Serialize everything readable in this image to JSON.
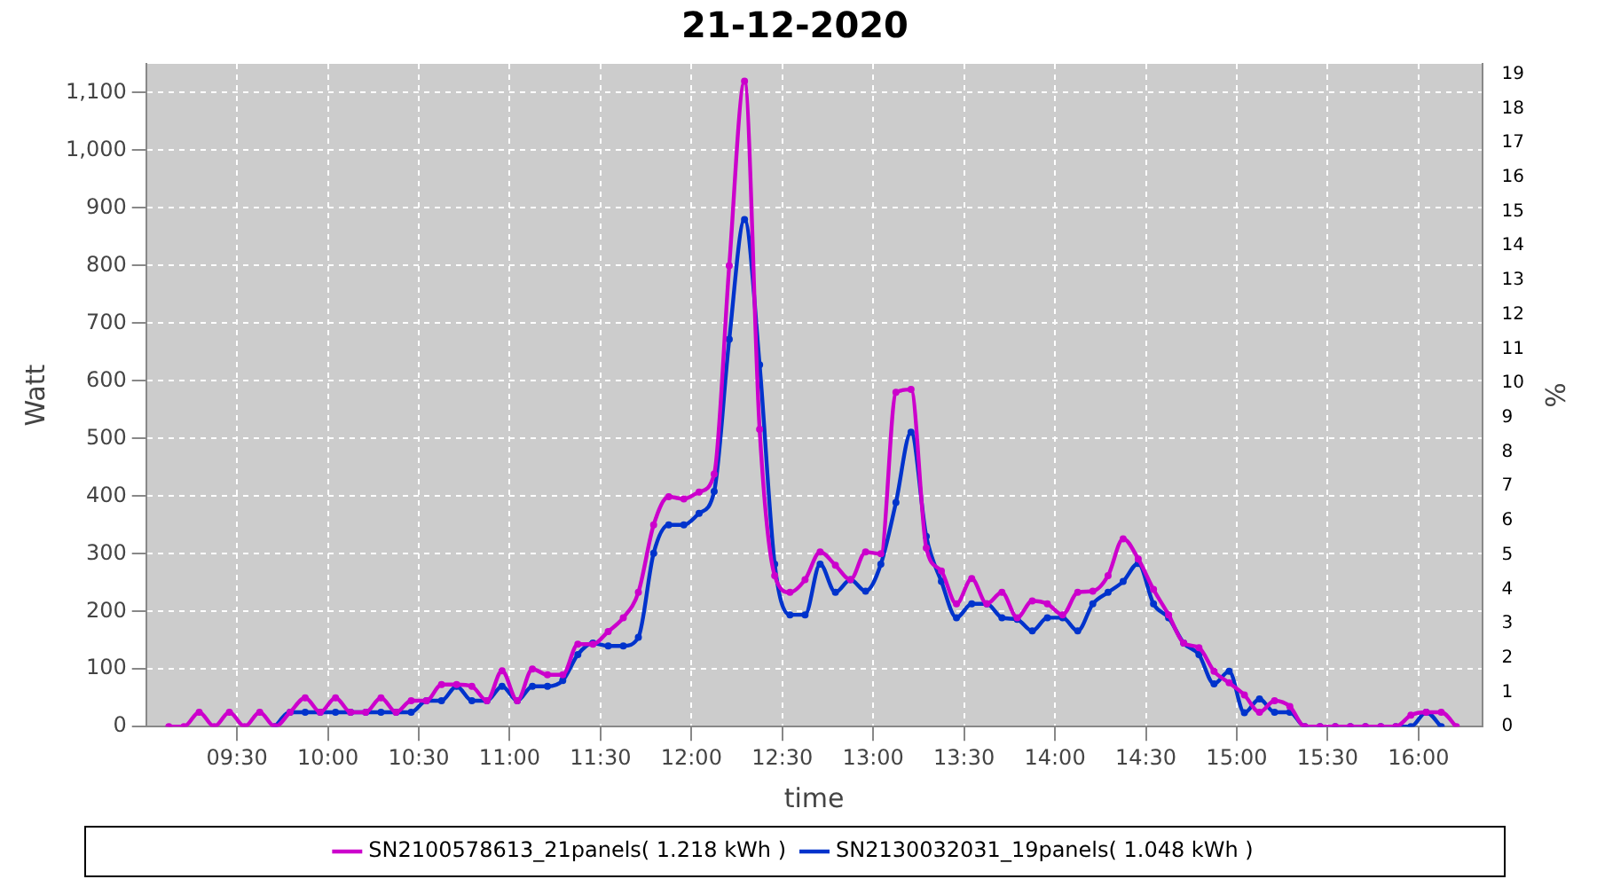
{
  "chart_data": {
    "type": "line",
    "title": "21-12-2020",
    "xlabel": "time",
    "ylabel": "Watt",
    "y2label": "%",
    "x": [
      9.125,
      9.208,
      9.292,
      9.375,
      9.458,
      9.542,
      9.625,
      9.708,
      9.792,
      9.875,
      9.958,
      10.042,
      10.125,
      10.208,
      10.292,
      10.375,
      10.458,
      10.542,
      10.625,
      10.708,
      10.792,
      10.875,
      10.958,
      11.042,
      11.125,
      11.208,
      11.292,
      11.375,
      11.458,
      11.542,
      11.625,
      11.708,
      11.792,
      11.875,
      11.958,
      12.042,
      12.125,
      12.208,
      12.292,
      12.375,
      12.458,
      12.542,
      12.625,
      12.708,
      12.792,
      12.875,
      12.958,
      13.042,
      13.125,
      13.208,
      13.292,
      13.375,
      13.458,
      13.542,
      13.625,
      13.708,
      13.792,
      13.875,
      13.958,
      14.042,
      14.125,
      14.208,
      14.292,
      14.375,
      14.458,
      14.542,
      14.625,
      14.708,
      14.792,
      14.875,
      14.958,
      15.042,
      15.125,
      15.208,
      15.292,
      15.375,
      15.458,
      15.542,
      15.625,
      15.708,
      15.792,
      15.875,
      15.958,
      16.042,
      16.125,
      16.208
    ],
    "series": [
      {
        "name": "SN2100578613_21panels( 1.218 kWh )",
        "color": "#cc00cc",
        "values": [
          0,
          0,
          25,
          0,
          25,
          0,
          25,
          0,
          25,
          50,
          25,
          50,
          25,
          25,
          50,
          25,
          45,
          45,
          73,
          73,
          70,
          45,
          97,
          45,
          100,
          90,
          90,
          143,
          143,
          165,
          189,
          233,
          350,
          399,
          395,
          407,
          438,
          800,
          1120,
          516,
          262,
          233,
          255,
          303,
          280,
          255,
          303,
          300,
          580,
          585,
          310,
          270,
          213,
          257,
          213,
          233,
          189,
          218,
          213,
          194,
          233,
          235,
          262,
          326,
          291,
          238,
          194,
          145,
          137,
          96,
          76,
          55,
          25,
          45,
          35,
          0,
          0,
          0,
          0,
          0,
          0,
          0,
          20,
          25,
          25,
          0
        ]
      },
      {
        "name": "SN2130032031_19panels( 1.048 kWh )",
        "color": "#0033cc",
        "values": [
          null,
          null,
          null,
          null,
          null,
          null,
          null,
          0,
          25,
          25,
          25,
          25,
          25,
          25,
          25,
          25,
          25,
          45,
          45,
          70,
          45,
          45,
          70,
          45,
          70,
          70,
          80,
          125,
          145,
          140,
          140,
          155,
          301,
          350,
          350,
          370,
          408,
          672,
          880,
          628,
          282,
          194,
          194,
          282,
          233,
          255,
          235,
          282,
          389,
          511,
          330,
          252,
          189,
          213,
          213,
          189,
          186,
          166,
          189,
          189,
          166,
          213,
          233,
          252,
          283,
          213,
          189,
          145,
          125,
          74,
          96,
          24,
          48,
          25,
          25,
          0,
          0,
          0,
          0,
          0,
          0,
          0,
          0,
          25,
          0,
          null
        ]
      }
    ],
    "xlim": [
      9.0,
      16.35
    ],
    "xticks": [
      {
        "value": 9.5,
        "label": "09:30"
      },
      {
        "value": 10,
        "label": "10:00"
      },
      {
        "value": 10.5,
        "label": "10:30"
      },
      {
        "value": 11,
        "label": "11:00"
      },
      {
        "value": 11.5,
        "label": "11:30"
      },
      {
        "value": 12,
        "label": "12:00"
      },
      {
        "value": 12.5,
        "label": "12:30"
      },
      {
        "value": 13,
        "label": "13:00"
      },
      {
        "value": 13.5,
        "label": "13:30"
      },
      {
        "value": 14,
        "label": "14:00"
      },
      {
        "value": 14.5,
        "label": "14:30"
      },
      {
        "value": 15,
        "label": "15:00"
      },
      {
        "value": 15.5,
        "label": "15:30"
      },
      {
        "value": 16,
        "label": "16:00"
      }
    ],
    "ylim": [
      0,
      1150
    ],
    "yticks": [
      0,
      100,
      200,
      300,
      400,
      500,
      600,
      700,
      800,
      900,
      {
        "value": 1000,
        "label": "1,000"
      },
      {
        "value": 1100,
        "label": "1,100"
      }
    ],
    "y2lim": [
      0,
      19.3
    ],
    "y2ticks": [
      0,
      1,
      2,
      3,
      4,
      5,
      6,
      7,
      8,
      9,
      10,
      11,
      12,
      13,
      14,
      15,
      16,
      17,
      18,
      19
    ],
    "grid": true,
    "legend": "bottom",
    "marker": "circle",
    "line_style": "solid"
  }
}
